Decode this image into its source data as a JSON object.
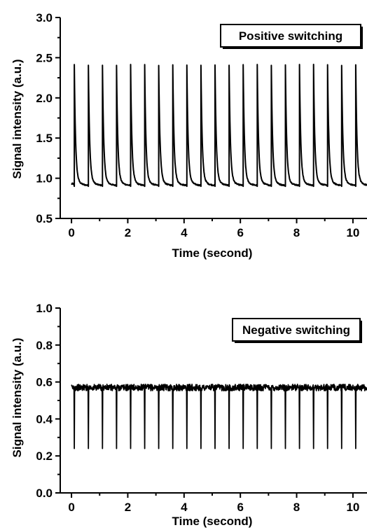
{
  "chart_data": [
    {
      "type": "line",
      "legend": "Positive switching",
      "legend_placement": "top-right",
      "xlabel": "Time (second)",
      "ylabel": "Signal intensity (a.u.)",
      "xlim": [
        -0.4,
        10.5
      ],
      "ylim": [
        0.5,
        3.0
      ],
      "xticks": [
        0,
        2,
        4,
        6,
        8,
        10
      ],
      "xtick_labels": [
        "0",
        "2",
        "4",
        "6",
        "8",
        "10"
      ],
      "yticks": [
        0.5,
        1.0,
        1.5,
        2.0,
        2.5,
        3.0
      ],
      "ytick_labels": [
        "0.5",
        "1.0",
        "1.5",
        "2.0",
        "2.5",
        "3.0"
      ],
      "grid": false,
      "signal": {
        "baseline": 0.9,
        "peak": 2.33,
        "spike_times": [
          0.1,
          0.6,
          1.1,
          1.6,
          2.1,
          2.6,
          3.1,
          3.6,
          4.1,
          4.6,
          5.1,
          5.6,
          6.1,
          6.6,
          7.1,
          7.6,
          8.1,
          8.6,
          9.1,
          9.6,
          10.1
        ],
        "start": 0.0,
        "end": 10.5
      }
    },
    {
      "type": "line",
      "legend": "Negative switching",
      "legend_placement": "top-right",
      "xlabel": "Time (second)",
      "ylabel": "Signal intensity (a.u.)",
      "xlim": [
        -0.4,
        10.5
      ],
      "ylim": [
        0.0,
        1.0
      ],
      "xticks": [
        0,
        2,
        4,
        6,
        8,
        10
      ],
      "xtick_labels": [
        "0",
        "2",
        "4",
        "6",
        "8",
        "10"
      ],
      "yticks": [
        0.0,
        0.2,
        0.4,
        0.6,
        0.8,
        1.0
      ],
      "ytick_labels": [
        "0.0",
        "0.2",
        "0.4",
        "0.6",
        "0.8",
        "1.0"
      ],
      "grid": false,
      "signal": {
        "baseline": 0.57,
        "trough": 0.24,
        "spike_times": [
          0.1,
          0.6,
          1.1,
          1.6,
          2.1,
          2.6,
          3.1,
          3.6,
          4.1,
          4.6,
          5.1,
          5.6,
          6.1,
          6.6,
          7.1,
          7.6,
          8.1,
          8.6,
          9.1,
          9.6,
          10.1
        ],
        "start": 0.0,
        "end": 10.5
      }
    }
  ]
}
